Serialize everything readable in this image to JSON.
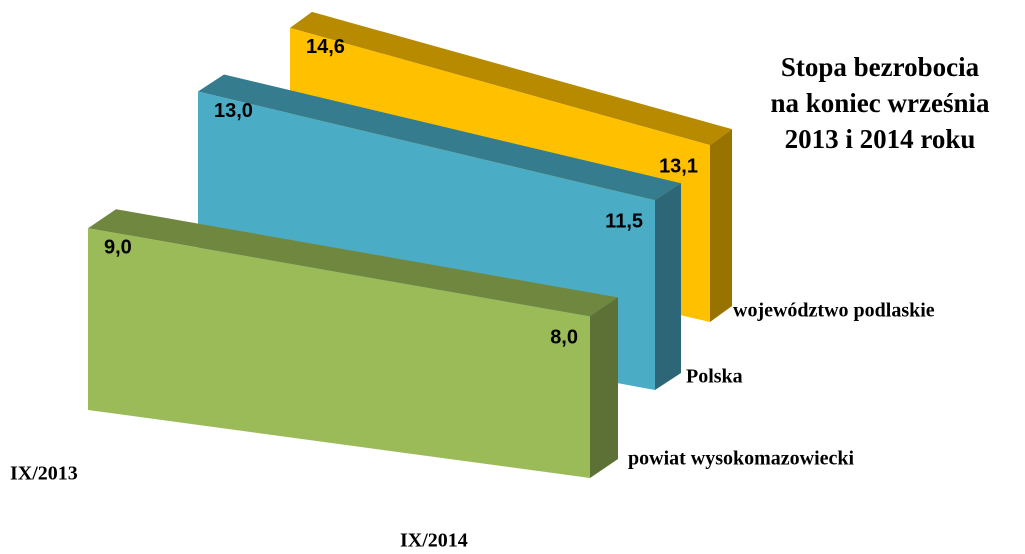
{
  "chart_data": {
    "type": "area3d",
    "title": [
      "Stopa bezrobocia",
      "na koniec września",
      "2013 i 2014 roku"
    ],
    "categories": [
      "IX/2013",
      "IX/2014"
    ],
    "series": [
      {
        "name": "województwo podlaskie",
        "color": "#ffc000",
        "values": [
          14.6,
          13.1
        ],
        "value_labels": [
          "14,6",
          "13,1"
        ]
      },
      {
        "name": "Polska",
        "color": "#4bacc6",
        "values": [
          13.0,
          11.5
        ],
        "value_labels": [
          "13,0",
          "11,5"
        ]
      },
      {
        "name": "powiat wysokomazowiecki",
        "color": "#9bbb59",
        "values": [
          9.0,
          8.0
        ],
        "value_labels": [
          "9,0",
          "8,0"
        ]
      }
    ]
  }
}
